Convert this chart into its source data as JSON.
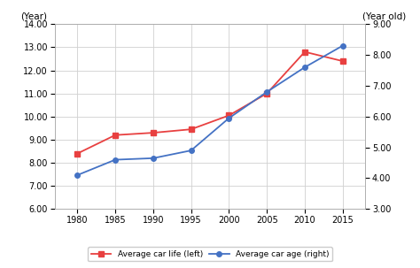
{
  "years": [
    1980,
    1985,
    1990,
    1995,
    2000,
    2005,
    2010,
    2015
  ],
  "car_life": [
    8.4,
    9.2,
    9.3,
    9.45,
    10.05,
    11.0,
    12.8,
    12.4
  ],
  "car_age": [
    4.1,
    4.6,
    4.65,
    4.9,
    5.95,
    6.8,
    7.6,
    8.3
  ],
  "car_life_color": "#e84040",
  "car_age_color": "#4472c4",
  "left_ylabel": "(Year)",
  "right_ylabel": "(Year old)",
  "left_ylim": [
    6.0,
    14.0
  ],
  "right_ylim": [
    3.0,
    9.0
  ],
  "left_yticks": [
    6.0,
    7.0,
    8.0,
    9.0,
    10.0,
    11.0,
    12.0,
    13.0,
    14.0
  ],
  "right_yticks": [
    3.0,
    4.0,
    5.0,
    6.0,
    7.0,
    8.0,
    9.0
  ],
  "legend_car_life": "Average car life (left)",
  "legend_car_age": "Average car age (right)",
  "background_color": "#ffffff",
  "grid_color": "#d0d0d0",
  "figsize": [
    4.74,
    3.03
  ],
  "dpi": 100
}
